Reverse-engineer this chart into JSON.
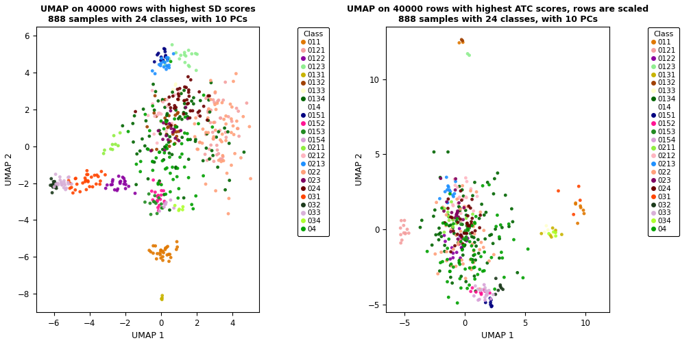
{
  "title1": "UMAP on 40000 rows with highest SD scores\n888 samples with 24 classes, with 10 PCs",
  "title2": "UMAP on 40000 rows with highest ATC scores, rows are scaled\n888 samples with 24 classes, with 10 PCs",
  "xlabel": "UMAP 1",
  "ylabel": "UMAP 2",
  "classes": [
    "011",
    "0121",
    "0122",
    "0123",
    "0131",
    "0132",
    "0133",
    "0134",
    "014",
    "0151",
    "0152",
    "0153",
    "0154",
    "0211",
    "0212",
    "0213",
    "022",
    "023",
    "024",
    "031",
    "032",
    "033",
    "034",
    "04"
  ],
  "colors": [
    "#E07800",
    "#F4A0A0",
    "#8B00A0",
    "#90EE90",
    "#C8B400",
    "#A04000",
    "#FFFFCC",
    "#006400",
    "#FFFFFF",
    "#000080",
    "#FF1493",
    "#228B22",
    "#D8A0D8",
    "#90EE40",
    "#FFB6C1",
    "#1E90FF",
    "#FFA07A",
    "#800060",
    "#6B0000",
    "#FF4500",
    "#1C3A1C",
    "#D8B0D8",
    "#ADFF2F",
    "#00A000"
  ],
  "plot1_xlim": [
    -7,
    5.5
  ],
  "plot1_ylim": [
    -9,
    6.5
  ],
  "plot1_xticks": [
    -6,
    -4,
    -2,
    0,
    2,
    4
  ],
  "plot1_yticks": [
    -8,
    -6,
    -4,
    -2,
    0,
    2,
    4,
    6
  ],
  "plot2_xlim": [
    -6.5,
    12
  ],
  "plot2_ylim": [
    -5.5,
    13.5
  ],
  "plot2_xticks": [
    -5,
    0,
    5,
    10
  ],
  "plot2_yticks": [
    -5,
    0,
    5,
    10
  ],
  "point_size": 12,
  "alpha": 0.9,
  "bg_color": "#FFFFFF",
  "legend_fontsize": 7.5,
  "title_fontsize": 9,
  "axis_label_fontsize": 9
}
